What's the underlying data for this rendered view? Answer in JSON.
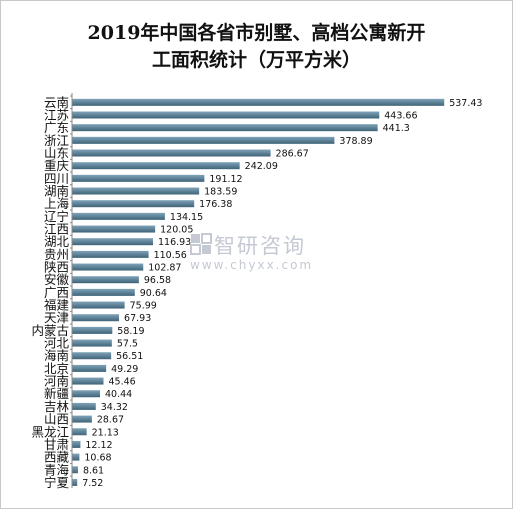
{
  "title_lines": [
    "2019年中国各省市别墅、高档公寓新开",
    "工面积统计（万平方米）"
  ],
  "watermark": {
    "name": "智研咨询",
    "url": "www.chyxx.com"
  },
  "colors": {
    "bar_top": "#7fa3b8",
    "bar_bottom": "#3f6478",
    "axis": "#888888",
    "text": "#111111"
  },
  "chart_data": {
    "type": "bar",
    "orientation": "horizontal",
    "title": "2019年中国各省市别墅、高档公寓新开工面积统计（万平方米）",
    "xlabel": "",
    "ylabel": "",
    "xlim": [
      0,
      540
    ],
    "grid": false,
    "legend": "none",
    "categories": [
      "云南",
      "江苏",
      "广东",
      "浙江",
      "山东",
      "重庆",
      "四川",
      "湖南",
      "上海",
      "辽宁",
      "江西",
      "湖北",
      "贵州",
      "陕西",
      "安徽",
      "广西",
      "福建",
      "天津",
      "内蒙古",
      "河北",
      "海南",
      "北京",
      "河南",
      "新疆",
      "吉林",
      "山西",
      "黑龙江",
      "甘肃",
      "西藏",
      "青海",
      "宁夏"
    ],
    "values": [
      537.43,
      443.66,
      441.3,
      378.89,
      286.67,
      242.09,
      191.12,
      183.59,
      176.38,
      134.15,
      120.05,
      116.93,
      110.56,
      102.87,
      96.58,
      90.64,
      75.99,
      67.93,
      58.19,
      57.5,
      56.51,
      49.29,
      45.46,
      40.44,
      34.32,
      28.67,
      21.13,
      12.12,
      10.68,
      8.61,
      7.52
    ],
    "value_labels": [
      "537.43",
      "443.66",
      "441.3",
      "378.89",
      "286.67",
      "242.09",
      "191.12",
      "183.59",
      "176.38",
      "134.15",
      "120.05",
      "116.93",
      "110.56",
      "102.87",
      "96.58",
      "90.64",
      "75.99",
      "67.93",
      "58.19",
      "57.5",
      "56.51",
      "49.29",
      "45.46",
      "40.44",
      "34.32",
      "28.67",
      "21.13",
      "12.12",
      "10.68",
      "8.61",
      "7.52"
    ]
  }
}
